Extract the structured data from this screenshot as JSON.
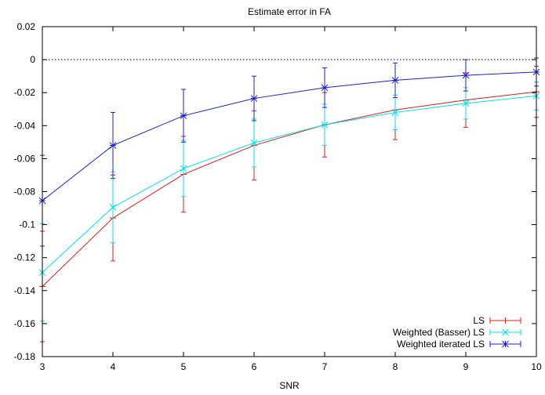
{
  "chart_data": {
    "type": "line",
    "title": "Estimate error in FA",
    "xlabel": "SNR",
    "ylabel": "",
    "xlim": [
      3,
      10
    ],
    "ylim": [
      -0.18,
      0.02
    ],
    "xticks": [
      "3",
      "4",
      "5",
      "6",
      "7",
      "8",
      "9",
      "10"
    ],
    "yticks": [
      "0.02",
      "0",
      "-0.02",
      "-0.04",
      "-0.06",
      "-0.08",
      "-0.1",
      "-0.12",
      "-0.14",
      "-0.16",
      "-0.18"
    ],
    "reference_line_y": 0,
    "legend_position": "bottom-right",
    "x": [
      3,
      4,
      5,
      6,
      7,
      8,
      9,
      10
    ],
    "series": [
      {
        "name": "LS",
        "color": "#e41a1c",
        "marker": "plus",
        "values": [
          -0.1375,
          -0.096,
          -0.0695,
          -0.052,
          -0.0395,
          -0.0305,
          -0.0245,
          -0.0195
        ],
        "error": [
          0.0335,
          0.026,
          0.023,
          0.021,
          0.0195,
          0.018,
          0.0165,
          0.0155
        ]
      },
      {
        "name": "Weighted (Basser) LS",
        "color": "#00e5e5",
        "marker": "cross",
        "values": [
          -0.129,
          -0.0895,
          -0.066,
          -0.0505,
          -0.0395,
          -0.032,
          -0.0265,
          -0.022
        ],
        "error": [
          0.0295,
          0.0215,
          0.017,
          0.0145,
          0.0125,
          0.0105,
          0.0095,
          0.0085
        ]
      },
      {
        "name": "Weighted iterated LS",
        "color": "#1f1fd4",
        "marker": "star",
        "values": [
          -0.0855,
          -0.052,
          -0.034,
          -0.0235,
          -0.017,
          -0.0125,
          -0.0095,
          -0.0075
        ],
        "error": [
          0.0275,
          0.02,
          0.016,
          0.0135,
          0.012,
          0.0105,
          0.0095,
          0.0085
        ]
      }
    ]
  }
}
